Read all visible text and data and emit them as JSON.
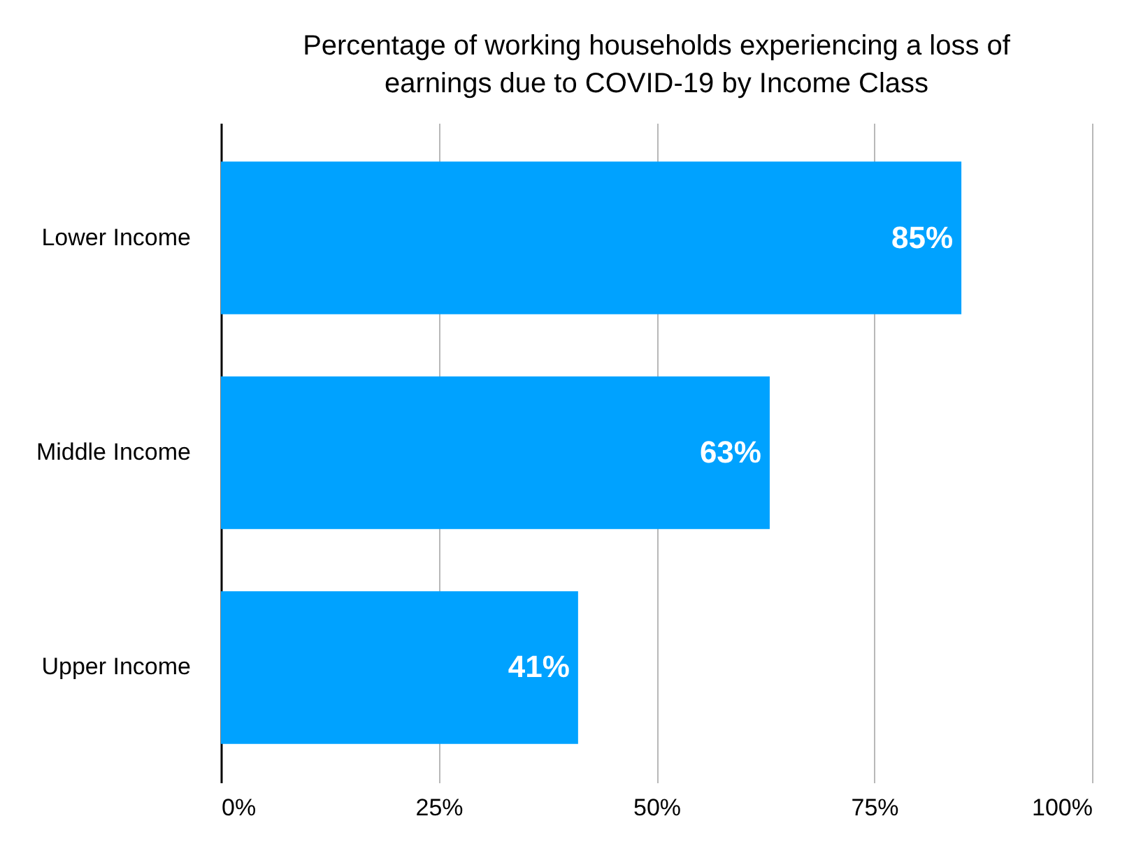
{
  "chart_data": {
    "type": "bar",
    "orientation": "horizontal",
    "title": "Percentage of working households experiencing a loss of earnings due to COVID-19 by Income Class",
    "categories": [
      "Lower Income",
      "Middle Income",
      "Upper Income"
    ],
    "values": [
      85,
      63,
      41
    ],
    "value_labels": [
      "85%",
      "63%",
      "41%"
    ],
    "color": "#00a2ff",
    "xlim": [
      0,
      100
    ],
    "xticks": [
      {
        "value": 0,
        "label": "0%"
      },
      {
        "value": 25,
        "label": "25%"
      },
      {
        "value": 50,
        "label": "50%"
      },
      {
        "value": 75,
        "label": "75%"
      },
      {
        "value": 100,
        "label": "100%"
      }
    ],
    "grid": "x"
  }
}
